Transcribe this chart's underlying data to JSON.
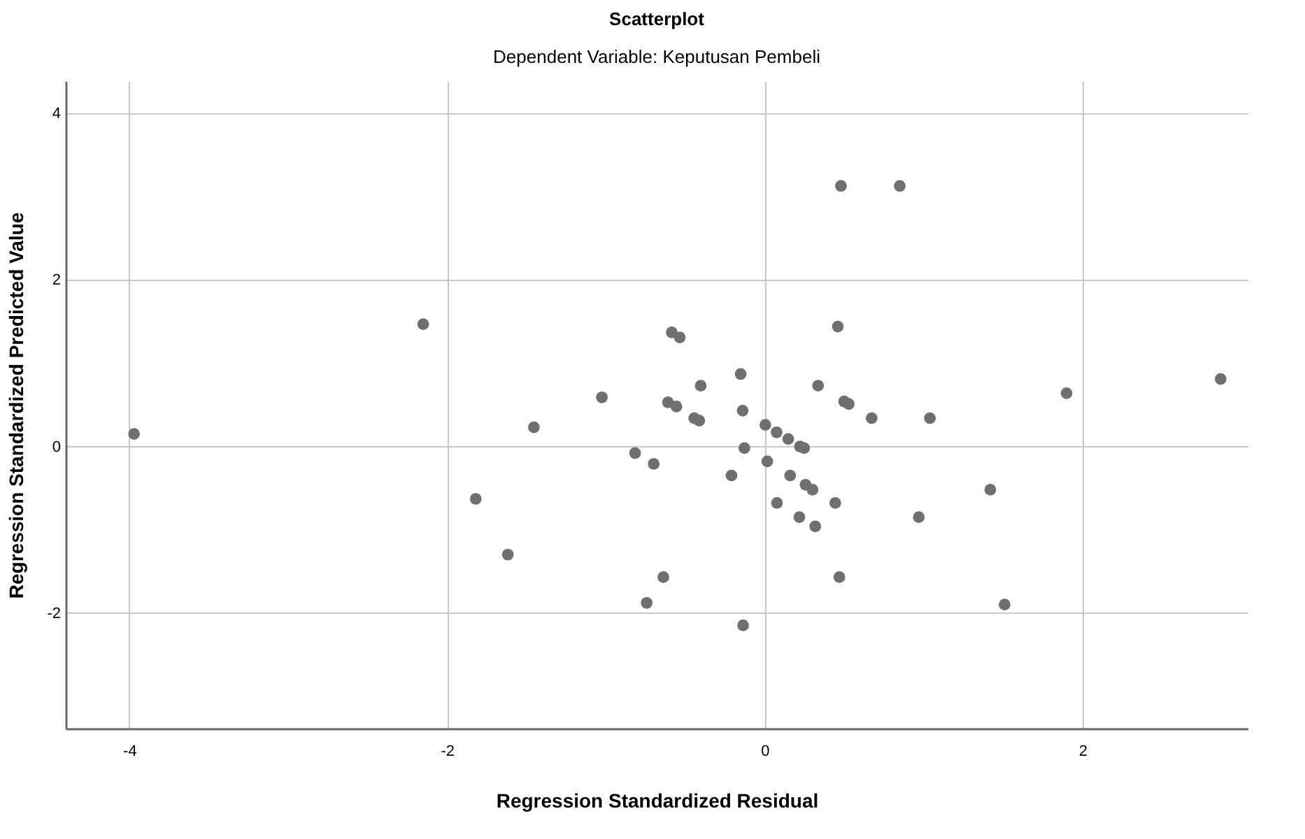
{
  "chart_data": {
    "type": "scatter",
    "title": "Scatterplot",
    "subtitle": "Dependent Variable: Keputusan Pembeli",
    "xlabel": "Regression Standardized Residual",
    "ylabel": "Regression Standardized Predicted Value",
    "xlim": [
      -4.4,
      3.04
    ],
    "ylim": [
      -3.39,
      4.39
    ],
    "xticks": [
      -4,
      -2,
      0,
      2
    ],
    "yticks": [
      -2,
      0,
      2,
      4
    ],
    "grid": true,
    "marker": "circle",
    "series": [
      {
        "color": "#6f6f6f",
        "x": [
          -3.97,
          -2.15,
          -0.585,
          -0.535,
          0.46,
          -0.151,
          -0.403,
          0.336,
          -1.025,
          -0.609,
          -0.556,
          0.5,
          0.529,
          -0.139,
          -0.444,
          -0.412,
          0.673,
          1.04,
          -1.453,
          0.004,
          0.075,
          0.148,
          0.222,
          0.248,
          -0.128,
          -0.816,
          -0.699,
          0.016,
          -0.209,
          0.16,
          0.257,
          0.301,
          -1.819,
          0.444,
          0.077,
          0.218,
          0.318,
          0.97,
          -1.617,
          -0.638,
          0.47,
          -0.743,
          -0.136,
          0.48,
          0.85,
          1.9,
          2.87,
          1.42,
          1.51
        ],
        "values": [
          0.15,
          1.47,
          1.37,
          1.31,
          1.44,
          0.87,
          0.73,
          0.73,
          0.59,
          0.53,
          0.48,
          0.54,
          0.51,
          0.43,
          0.34,
          0.31,
          0.34,
          0.34,
          0.23,
          0.26,
          0.17,
          0.09,
          0.0,
          -0.02,
          -0.02,
          -0.08,
          -0.21,
          -0.18,
          -0.35,
          -0.35,
          -0.46,
          -0.52,
          -0.63,
          -0.68,
          -0.68,
          -0.85,
          -0.96,
          -0.85,
          -1.3,
          -1.57,
          -1.57,
          -1.88,
          -2.15,
          3.13,
          3.13,
          0.64,
          0.81,
          -0.52,
          -1.9
        ]
      }
    ]
  }
}
